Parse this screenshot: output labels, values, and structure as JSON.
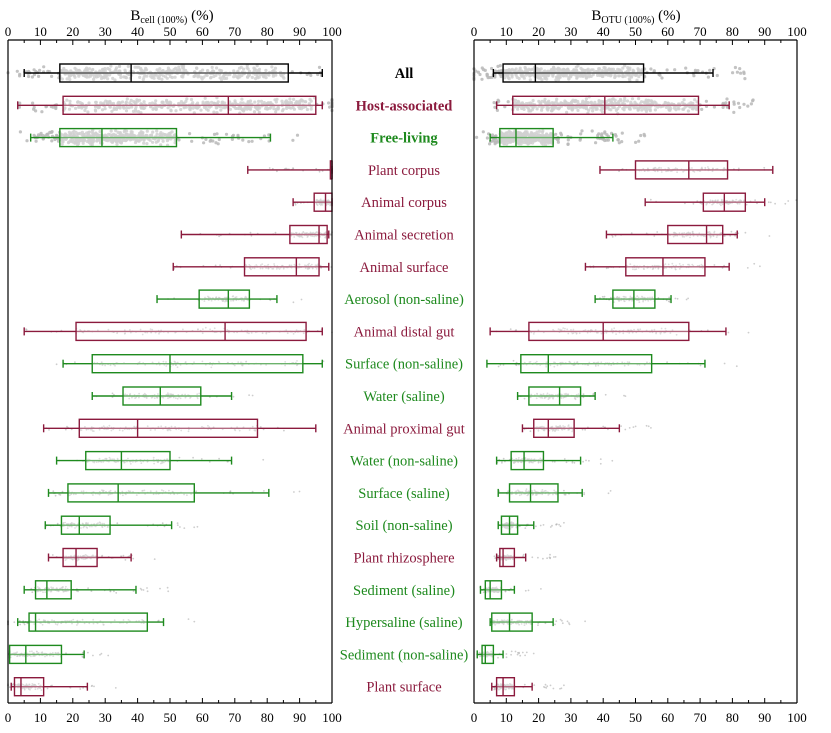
{
  "colors": {
    "all": "#000000",
    "host": "#8B1A3D",
    "free": "#1E8A1E",
    "points": "#b8b8b8",
    "axis": "#000000"
  },
  "chart_data": [
    {
      "type": "box",
      "title_main": "B",
      "title_sub": "cell (100%)",
      "title_unit": " (%)",
      "xlim": [
        0,
        100
      ],
      "ticks": [
        "0",
        "10",
        "20",
        "30",
        "40",
        "50",
        "60",
        "70",
        "80",
        "90",
        "100"
      ],
      "boxes": [
        {
          "group": "all",
          "whisker": [
            5,
            97
          ],
          "q1": 16,
          "median": 38,
          "q3": 86.5
        },
        {
          "group": "host",
          "whisker": [
            3,
            97
          ],
          "q1": 17,
          "median": 68,
          "q3": 95
        },
        {
          "group": "free",
          "whisker": [
            7,
            81
          ],
          "q1": 16,
          "median": 29,
          "q3": 52
        },
        {
          "group": "host",
          "whisker": [
            74,
            100
          ],
          "q1": 99.5,
          "median": 100,
          "q3": 100
        },
        {
          "group": "host",
          "whisker": [
            88,
            100
          ],
          "q1": 94.5,
          "median": 98,
          "q3": 100
        },
        {
          "group": "host",
          "whisker": [
            53.5,
            99
          ],
          "q1": 87,
          "median": 96,
          "q3": 98.5
        },
        {
          "group": "host",
          "whisker": [
            51,
            99
          ],
          "q1": 73,
          "median": 89,
          "q3": 96
        },
        {
          "group": "free",
          "whisker": [
            46,
            83
          ],
          "q1": 59,
          "median": 68,
          "q3": 74.5
        },
        {
          "group": "host",
          "whisker": [
            5,
            97
          ],
          "q1": 21,
          "median": 67,
          "q3": 92
        },
        {
          "group": "free",
          "whisker": [
            17,
            97
          ],
          "q1": 26,
          "median": 50,
          "q3": 91
        },
        {
          "group": "free",
          "whisker": [
            26,
            69
          ],
          "q1": 35.5,
          "median": 47,
          "q3": 59.5
        },
        {
          "group": "host",
          "whisker": [
            11,
            95
          ],
          "q1": 22,
          "median": 40,
          "q3": 77
        },
        {
          "group": "free",
          "whisker": [
            15,
            69
          ],
          "q1": 24,
          "median": 35,
          "q3": 50
        },
        {
          "group": "free",
          "whisker": [
            12.5,
            80.5
          ],
          "q1": 18.5,
          "median": 34,
          "q3": 57.5
        },
        {
          "group": "free",
          "whisker": [
            11.5,
            50.5
          ],
          "q1": 16.5,
          "median": 22,
          "q3": 31.5
        },
        {
          "group": "host",
          "whisker": [
            12.5,
            38
          ],
          "q1": 17,
          "median": 21,
          "q3": 27.5
        },
        {
          "group": "free",
          "whisker": [
            5,
            39.5
          ],
          "q1": 8.5,
          "median": 12,
          "q3": 19.5
        },
        {
          "group": "free",
          "whisker": [
            3,
            48
          ],
          "q1": 6.5,
          "median": 8.5,
          "q3": 43
        },
        {
          "group": "free",
          "whisker": [
            0.5,
            23.5
          ],
          "q1": 0.5,
          "median": 5.5,
          "q3": 16.5
        },
        {
          "group": "host",
          "whisker": [
            1,
            24.5
          ],
          "q1": 2,
          "median": 4,
          "q3": 11
        }
      ]
    },
    {
      "type": "box",
      "title_main": "B",
      "title_sub": "OTU (100%)",
      "title_unit": " (%)",
      "xlim": [
        0,
        100
      ],
      "ticks": [
        "0",
        "10",
        "20",
        "30",
        "40",
        "50",
        "60",
        "70",
        "80",
        "90",
        "100"
      ],
      "boxes": [
        {
          "group": "all",
          "whisker": [
            6,
            74
          ],
          "q1": 9,
          "median": 19,
          "q3": 52.5
        },
        {
          "group": "host",
          "whisker": [
            7,
            79
          ],
          "q1": 12,
          "median": 40.5,
          "q3": 69.5
        },
        {
          "group": "free",
          "whisker": [
            5,
            43
          ],
          "q1": 8,
          "median": 13,
          "q3": 24.5
        },
        {
          "group": "host",
          "whisker": [
            39,
            92.5
          ],
          "q1": 50,
          "median": 66.5,
          "q3": 78.5
        },
        {
          "group": "host",
          "whisker": [
            53,
            90
          ],
          "q1": 71,
          "median": 77.5,
          "q3": 84
        },
        {
          "group": "host",
          "whisker": [
            41,
            81.5
          ],
          "q1": 60,
          "median": 72,
          "q3": 77
        },
        {
          "group": "host",
          "whisker": [
            34.5,
            79
          ],
          "q1": 47,
          "median": 58.5,
          "q3": 71.5
        },
        {
          "group": "free",
          "whisker": [
            37.5,
            61
          ],
          "q1": 43,
          "median": 49.5,
          "q3": 56
        },
        {
          "group": "host",
          "whisker": [
            5,
            78
          ],
          "q1": 17,
          "median": 40,
          "q3": 66.5
        },
        {
          "group": "free",
          "whisker": [
            4,
            71.5
          ],
          "q1": 14.5,
          "median": 23,
          "q3": 55
        },
        {
          "group": "free",
          "whisker": [
            13.5,
            37.5
          ],
          "q1": 17,
          "median": 26.5,
          "q3": 33
        },
        {
          "group": "host",
          "whisker": [
            15,
            45
          ],
          "q1": 18.5,
          "median": 23,
          "q3": 31
        },
        {
          "group": "free",
          "whisker": [
            7,
            33
          ],
          "q1": 11.5,
          "median": 15.5,
          "q3": 21.5
        },
        {
          "group": "free",
          "whisker": [
            7.5,
            33.5
          ],
          "q1": 11,
          "median": 17.5,
          "q3": 26
        },
        {
          "group": "free",
          "whisker": [
            7.5,
            18.5
          ],
          "q1": 8.5,
          "median": 11,
          "q3": 13.5
        },
        {
          "group": "host",
          "whisker": [
            7,
            16
          ],
          "q1": 8,
          "median": 9,
          "q3": 12.5
        },
        {
          "group": "free",
          "whisker": [
            2,
            12.5
          ],
          "q1": 3.5,
          "median": 5,
          "q3": 8.5
        },
        {
          "group": "free",
          "whisker": [
            5,
            24.5
          ],
          "q1": 5.5,
          "median": 11,
          "q3": 18
        },
        {
          "group": "free",
          "whisker": [
            1,
            9
          ],
          "q1": 2.5,
          "median": 3.5,
          "q3": 6
        },
        {
          "group": "host",
          "whisker": [
            5.5,
            18
          ],
          "q1": 7,
          "median": 9,
          "q3": 12.5
        }
      ]
    }
  ],
  "categories": [
    {
      "label": "All",
      "group": "all",
      "bold": true
    },
    {
      "label": "Host-associated",
      "group": "host",
      "bold": true
    },
    {
      "label": "Free-living",
      "group": "free",
      "bold": true
    },
    {
      "label": "Plant corpus",
      "group": "host"
    },
    {
      "label": "Animal corpus",
      "group": "host"
    },
    {
      "label": "Animal secretion",
      "group": "host"
    },
    {
      "label": "Animal surface",
      "group": "host"
    },
    {
      "label": "Aerosol (non-saline)",
      "group": "free"
    },
    {
      "label": "Animal distal gut",
      "group": "host"
    },
    {
      "label": "Surface (non-saline)",
      "group": "free"
    },
    {
      "label": "Water (saline)",
      "group": "free"
    },
    {
      "label": "Animal proximal gut",
      "group": "host"
    },
    {
      "label": "Water (non-saline)",
      "group": "free"
    },
    {
      "label": "Surface (saline)",
      "group": "free"
    },
    {
      "label": "Soil (non-saline)",
      "group": "free"
    },
    {
      "label": "Plant rhizosphere",
      "group": "host"
    },
    {
      "label": "Sediment (saline)",
      "group": "free"
    },
    {
      "label": "Hypersaline (saline)",
      "group": "free"
    },
    {
      "label": "Sediment (non-saline)",
      "group": "free"
    },
    {
      "label": "Plant surface",
      "group": "host"
    }
  ]
}
